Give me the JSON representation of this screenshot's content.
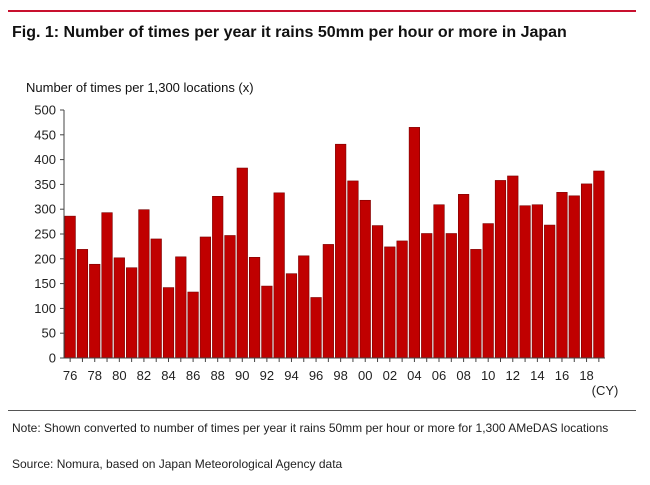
{
  "header": {
    "title": "Fig. 1: Number of times per year it rains 50mm per hour or more in Japan"
  },
  "footer": {
    "note": "Note: Shown converted to number of times per year it rains 50mm per hour or more for 1,300 AMeDAS locations",
    "source": "Source: Nomura, based on Japan Meteorological Agency data"
  },
  "colors": {
    "accent": "#c8102e",
    "bar_fill": "#c00000",
    "bar_stroke": "#7a0000"
  },
  "chart_data": {
    "type": "bar",
    "title": "Fig. 1: Number of times per year it rains 50mm per hour or more in Japan",
    "ylabel": "Number of times per 1,300 locations (x)",
    "xlabel": "(CY)",
    "ylim": [
      0,
      500
    ],
    "yticks": [
      0,
      50,
      100,
      150,
      200,
      250,
      300,
      350,
      400,
      450,
      500
    ],
    "grid": false,
    "categories": [
      "1976",
      "1977",
      "1978",
      "1979",
      "1980",
      "1981",
      "1982",
      "1983",
      "1984",
      "1985",
      "1986",
      "1987",
      "1988",
      "1989",
      "1990",
      "1991",
      "1992",
      "1993",
      "1994",
      "1995",
      "1996",
      "1997",
      "1998",
      "1999",
      "2000",
      "2001",
      "2002",
      "2003",
      "2004",
      "2005",
      "2006",
      "2007",
      "2008",
      "2009",
      "2010",
      "2011",
      "2012",
      "2013",
      "2014",
      "2015",
      "2016",
      "2017",
      "2018",
      "2019"
    ],
    "xtick_labels": [
      "76",
      "",
      "78",
      "",
      "80",
      "",
      "82",
      "",
      "84",
      "",
      "86",
      "",
      "88",
      "",
      "90",
      "",
      "92",
      "",
      "94",
      "",
      "96",
      "",
      "98",
      "",
      "00",
      "",
      "02",
      "",
      "04",
      "",
      "06",
      "",
      "08",
      "",
      "10",
      "",
      "12",
      "",
      "14",
      "",
      "16",
      "",
      "18",
      ""
    ],
    "values": [
      286,
      219,
      189,
      293,
      202,
      182,
      299,
      240,
      142,
      204,
      133,
      244,
      326,
      247,
      383,
      203,
      145,
      333,
      170,
      206,
      122,
      229,
      431,
      357,
      318,
      267,
      224,
      236,
      465,
      251,
      309,
      251,
      330,
      219,
      271,
      358,
      367,
      307,
      309,
      268,
      334,
      327,
      351,
      377
    ]
  }
}
